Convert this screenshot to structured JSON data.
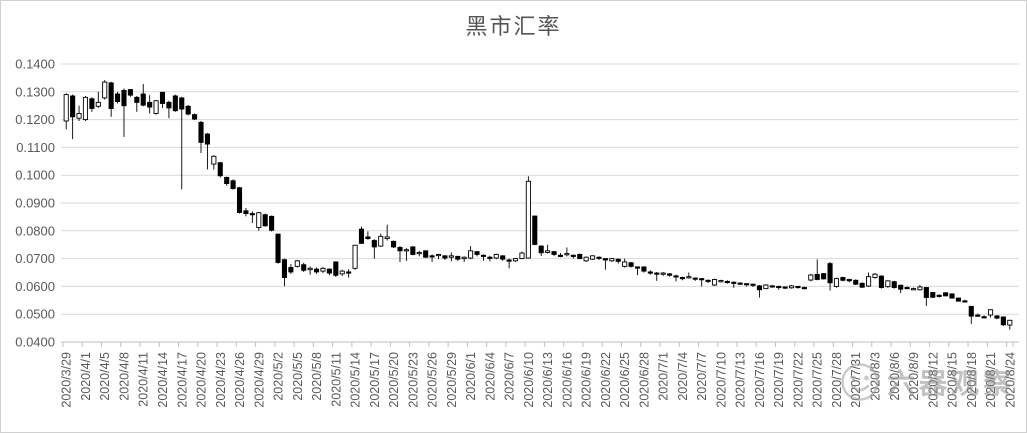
{
  "title": "黑市汇率",
  "watermark": {
    "text": "六器观察"
  },
  "chart_data": {
    "type": "candlestick",
    "title": "黑市汇率",
    "grid": true,
    "y_axis": {
      "min": 0.04,
      "max": 0.14,
      "step": 0.01,
      "format_decimals": 4
    },
    "y_tick_labels": [
      "0.1400",
      "0.1300",
      "0.1200",
      "0.1100",
      "0.1000",
      "0.0900",
      "0.0800",
      "0.0700",
      "0.0600",
      "0.0500",
      "0.0400"
    ],
    "x_label_every": 3,
    "x_tick_labels": [
      "2020/3/29",
      "2020/4/1",
      "2020/4/5",
      "2020/4/8",
      "2020/4/11",
      "2020/4/14",
      "2020/4/17",
      "2020/4/20",
      "2020/4/23",
      "2020/4/26",
      "2020/4/29",
      "2020/5/2",
      "2020/5/5",
      "2020/5/8",
      "2020/5/11",
      "2020/5/14",
      "2020/5/17",
      "2020/5/20",
      "2020/5/23",
      "2020/5/26",
      "2020/5/29",
      "2020/6/1",
      "2020/6/4",
      "2020/6/7",
      "2020/6/10",
      "2020/6/13",
      "2020/6/16",
      "2020/6/19",
      "2020/6/22",
      "2020/6/25",
      "2020/6/28",
      "2020/7/1",
      "2020/7/4",
      "2020/7/7",
      "2020/7/10",
      "2020/7/13",
      "2020/7/16",
      "2020/7/19",
      "2020/7/22",
      "2020/7/25",
      "2020/7/28",
      "2020/7/31",
      "2020/8/3",
      "2020/8/6",
      "2020/8/9",
      "2020/8/12",
      "2020/8/15",
      "2020/8/18",
      "2020/8/21",
      "2020/8/24"
    ],
    "colors": {
      "up_fill": "#ffffff",
      "down_fill": "#000000",
      "outline": "#000000",
      "gridline": "#d9d9d9",
      "axis_line": "#bfbfbf",
      "axis_text": "#595959",
      "title_text": "#555555"
    },
    "candles": [
      [
        "2020/3/29",
        0.1195,
        0.1295,
        0.1165,
        0.129
      ],
      [
        "2020/3/30",
        0.1285,
        0.129,
        0.113,
        0.121
      ],
      [
        "2020/3/31",
        0.1205,
        0.125,
        0.1195,
        0.1222
      ],
      [
        "2020/4/1",
        0.12,
        0.1285,
        0.1195,
        0.128
      ],
      [
        "2020/4/3",
        0.1275,
        0.128,
        0.1228,
        0.124
      ],
      [
        "2020/4/4",
        0.1248,
        0.13,
        0.1242,
        0.1262
      ],
      [
        "2020/4/5",
        0.1278,
        0.1342,
        0.1272,
        0.1335
      ],
      [
        "2020/4/6",
        0.1332,
        0.1336,
        0.121,
        0.124
      ],
      [
        "2020/4/7",
        0.1292,
        0.13,
        0.1258,
        0.1265
      ],
      [
        "2020/4/8",
        0.1305,
        0.1312,
        0.1138,
        0.125
      ],
      [
        "2020/4/9",
        0.1308,
        0.131,
        0.1282,
        0.1288
      ],
      [
        "2020/4/10",
        0.128,
        0.1285,
        0.1228,
        0.1262
      ],
      [
        "2020/4/11",
        0.1292,
        0.1328,
        0.1248,
        0.1252
      ],
      [
        "2020/4/12",
        0.1262,
        0.1288,
        0.1222,
        0.1245
      ],
      [
        "2020/4/13",
        0.1222,
        0.127,
        0.1218,
        0.1268
      ],
      [
        "2020/4/14",
        0.1298,
        0.13,
        0.1242,
        0.1258
      ],
      [
        "2020/4/15",
        0.1262,
        0.1268,
        0.1205,
        0.1242
      ],
      [
        "2020/4/16",
        0.1285,
        0.129,
        0.1228,
        0.1232
      ],
      [
        "2020/4/17",
        0.1278,
        0.1282,
        0.0949,
        0.1238
      ],
      [
        "2020/4/18",
        0.1248,
        0.1252,
        0.1215,
        0.122
      ],
      [
        "2020/4/19",
        0.1218,
        0.1222,
        0.1198,
        0.1202
      ],
      [
        "2020/4/20",
        0.119,
        0.1195,
        0.108,
        0.1118
      ],
      [
        "2020/4/21",
        0.1148,
        0.1152,
        0.1021,
        0.1112
      ],
      [
        "2020/4/22",
        0.104,
        0.1072,
        0.102,
        0.1068
      ],
      [
        "2020/4/23",
        0.1045,
        0.1048,
        0.0992,
        0.0998
      ],
      [
        "2020/4/24",
        0.0992,
        0.0995,
        0.0962,
        0.097
      ],
      [
        "2020/4/25",
        0.098,
        0.0985,
        0.0948,
        0.0952
      ],
      [
        "2020/4/26",
        0.0955,
        0.0958,
        0.0862,
        0.0866
      ],
      [
        "2020/4/27",
        0.0872,
        0.0882,
        0.0852,
        0.0862
      ],
      [
        "2020/4/28",
        0.0862,
        0.087,
        0.0828,
        0.086
      ],
      [
        "2020/4/29",
        0.0812,
        0.0868,
        0.08,
        0.0865
      ],
      [
        "2020/4/30",
        0.0858,
        0.0862,
        0.0815,
        0.0818
      ],
      [
        "2020/5/1",
        0.0852,
        0.0855,
        0.0798,
        0.0802
      ],
      [
        "2020/5/2",
        0.0788,
        0.079,
        0.0682,
        0.0686
      ],
      [
        "2020/5/3",
        0.0696,
        0.07,
        0.0601,
        0.0632
      ],
      [
        "2020/5/4",
        0.0668,
        0.068,
        0.0645,
        0.0652
      ],
      [
        "2020/5/5",
        0.0672,
        0.0695,
        0.0668,
        0.0692
      ],
      [
        "2020/5/6",
        0.0678,
        0.0685,
        0.0652,
        0.0658
      ],
      [
        "2020/5/7",
        0.066,
        0.0672,
        0.0642,
        0.0665
      ],
      [
        "2020/5/8",
        0.0662,
        0.0668,
        0.0645,
        0.0652
      ],
      [
        "2020/5/9",
        0.0655,
        0.067,
        0.0648,
        0.0665
      ],
      [
        "2020/5/10",
        0.0662,
        0.0665,
        0.064,
        0.0648
      ],
      [
        "2020/5/11",
        0.0688,
        0.069,
        0.0634,
        0.064
      ],
      [
        "2020/5/12",
        0.0645,
        0.066,
        0.0638,
        0.0655
      ],
      [
        "2020/5/13",
        0.0652,
        0.0662,
        0.0632,
        0.0648
      ],
      [
        "2020/5/14",
        0.0665,
        0.075,
        0.066,
        0.0748
      ],
      [
        "2020/5/15",
        0.0806,
        0.0815,
        0.0752,
        0.0755
      ],
      [
        "2020/5/16",
        0.0778,
        0.0798,
        0.0768,
        0.0772
      ],
      [
        "2020/5/17",
        0.0765,
        0.077,
        0.07,
        0.0742
      ],
      [
        "2020/5/18",
        0.0745,
        0.079,
        0.0742,
        0.078
      ],
      [
        "2020/5/19",
        0.0772,
        0.0822,
        0.0765,
        0.0778
      ],
      [
        "2020/5/20",
        0.0762,
        0.0765,
        0.0738,
        0.0742
      ],
      [
        "2020/5/21",
        0.074,
        0.0745,
        0.0688,
        0.0728
      ],
      [
        "2020/5/22",
        0.073,
        0.0738,
        0.0692,
        0.0732
      ],
      [
        "2020/5/23",
        0.0742,
        0.0745,
        0.0712,
        0.0715
      ],
      [
        "2020/5/24",
        0.0718,
        0.0728,
        0.0708,
        0.0722
      ],
      [
        "2020/5/25",
        0.0728,
        0.073,
        0.0702,
        0.0705
      ],
      [
        "2020/5/26",
        0.071,
        0.0715,
        0.0688,
        0.0708
      ],
      [
        "2020/5/27",
        0.0712,
        0.0718,
        0.0698,
        0.0715
      ],
      [
        "2020/5/28",
        0.071,
        0.0712,
        0.0695,
        0.0702
      ],
      [
        "2020/5/29",
        0.0705,
        0.0722,
        0.069,
        0.071
      ],
      [
        "2020/5/30",
        0.0708,
        0.071,
        0.0692,
        0.0698
      ],
      [
        "2020/5/31",
        0.07,
        0.0708,
        0.0688,
        0.0705
      ],
      [
        "2020/6/1",
        0.0702,
        0.0745,
        0.0698,
        0.0728
      ],
      [
        "2020/6/2",
        0.0725,
        0.0728,
        0.0708,
        0.0715
      ],
      [
        "2020/6/3",
        0.0712,
        0.0715,
        0.0692,
        0.0708
      ],
      [
        "2020/6/4",
        0.0705,
        0.071,
        0.069,
        0.0702
      ],
      [
        "2020/6/5",
        0.0702,
        0.0718,
        0.0698,
        0.0715
      ],
      [
        "2020/6/6",
        0.071,
        0.0712,
        0.0692,
        0.0698
      ],
      [
        "2020/6/7",
        0.0695,
        0.07,
        0.0665,
        0.0692
      ],
      [
        "2020/6/8",
        0.0692,
        0.0702,
        0.0688,
        0.07
      ],
      [
        "2020/6/9",
        0.07,
        0.0725,
        0.0698,
        0.072
      ],
      [
        "2020/6/10",
        0.0702,
        0.0996,
        0.07,
        0.0978
      ],
      [
        "2020/6/11",
        0.0853,
        0.0855,
        0.0748,
        0.0751
      ],
      [
        "2020/6/12",
        0.0745,
        0.0748,
        0.0709,
        0.0721
      ],
      [
        "2020/6/13",
        0.0722,
        0.075,
        0.0718,
        0.0728
      ],
      [
        "2020/6/14",
        0.0725,
        0.0728,
        0.071,
        0.0715
      ],
      [
        "2020/6/15",
        0.0712,
        0.072,
        0.0705,
        0.071
      ],
      [
        "2020/6/16",
        0.0715,
        0.074,
        0.0708,
        0.0718
      ],
      [
        "2020/6/17",
        0.0712,
        0.0715,
        0.07,
        0.0708
      ],
      [
        "2020/6/18",
        0.0715,
        0.0718,
        0.0698,
        0.07
      ],
      [
        "2020/6/19",
        0.0692,
        0.0708,
        0.0688,
        0.0705
      ],
      [
        "2020/6/20",
        0.0698,
        0.0712,
        0.0695,
        0.071
      ],
      [
        "2020/6/21",
        0.0705,
        0.0708,
        0.0695,
        0.0702
      ],
      [
        "2020/6/22",
        0.07,
        0.0702,
        0.066,
        0.0695
      ],
      [
        "2020/6/23",
        0.0692,
        0.0702,
        0.0688,
        0.07
      ],
      [
        "2020/6/24",
        0.0698,
        0.07,
        0.0682,
        0.069
      ],
      [
        "2020/6/25",
        0.0672,
        0.07,
        0.0668,
        0.0688
      ],
      [
        "2020/6/26",
        0.0685,
        0.0688,
        0.0668,
        0.0672
      ],
      [
        "2020/6/27",
        0.067,
        0.0672,
        0.064,
        0.0668
      ],
      [
        "2020/6/28",
        0.067,
        0.0672,
        0.065,
        0.0655
      ],
      [
        "2020/6/29",
        0.0652,
        0.0658,
        0.0642,
        0.065
      ],
      [
        "2020/6/30",
        0.0648,
        0.0652,
        0.062,
        0.0645
      ],
      [
        "2020/7/1",
        0.0645,
        0.0652,
        0.0638,
        0.0648
      ],
      [
        "2020/7/2",
        0.0645,
        0.0648,
        0.0635,
        0.064
      ],
      [
        "2020/7/3",
        0.0638,
        0.0642,
        0.0618,
        0.0635
      ],
      [
        "2020/7/4",
        0.0632,
        0.0635,
        0.0622,
        0.063
      ],
      [
        "2020/7/5",
        0.0632,
        0.065,
        0.0628,
        0.0635
      ],
      [
        "2020/7/6",
        0.063,
        0.0632,
        0.062,
        0.0628
      ],
      [
        "2020/7/7",
        0.0628,
        0.063,
        0.06,
        0.0625
      ],
      [
        "2020/7/8",
        0.0622,
        0.0625,
        0.0612,
        0.062
      ],
      [
        "2020/7/9",
        0.0605,
        0.0628,
        0.0602,
        0.0625
      ],
      [
        "2020/7/10",
        0.062,
        0.0624,
        0.0614,
        0.0621
      ],
      [
        "2020/7/11",
        0.0618,
        0.0622,
        0.061,
        0.0615
      ],
      [
        "2020/7/12",
        0.0615,
        0.0618,
        0.0595,
        0.0612
      ],
      [
        "2020/7/13",
        0.0612,
        0.0615,
        0.0605,
        0.061
      ],
      [
        "2020/7/14",
        0.061,
        0.0612,
        0.06,
        0.0608
      ],
      [
        "2020/7/15",
        0.0608,
        0.061,
        0.0598,
        0.0605
      ],
      [
        "2020/7/16",
        0.0602,
        0.0605,
        0.056,
        0.0588
      ],
      [
        "2020/7/17",
        0.0592,
        0.0608,
        0.059,
        0.0605
      ],
      [
        "2020/7/18",
        0.0602,
        0.0605,
        0.0595,
        0.06
      ],
      [
        "2020/7/19",
        0.06,
        0.0602,
        0.0588,
        0.0598
      ],
      [
        "2020/7/20",
        0.0598,
        0.06,
        0.059,
        0.0595
      ],
      [
        "2020/7/21",
        0.0595,
        0.0605,
        0.0592,
        0.0602
      ],
      [
        "2020/7/22",
        0.06,
        0.0602,
        0.0592,
        0.0598
      ],
      [
        "2020/7/23",
        0.0596,
        0.0599,
        0.059,
        0.0595
      ],
      [
        "2020/7/24",
        0.0623,
        0.0645,
        0.0618,
        0.0641
      ],
      [
        "2020/7/25",
        0.0643,
        0.0697,
        0.0622,
        0.0625
      ],
      [
        "2020/7/26",
        0.0646,
        0.0648,
        0.0625,
        0.0627
      ],
      [
        "2020/7/27",
        0.0682,
        0.0688,
        0.0585,
        0.0613
      ],
      [
        "2020/7/28",
        0.06,
        0.0632,
        0.0595,
        0.0628
      ],
      [
        "2020/7/29",
        0.0632,
        0.0635,
        0.0618,
        0.0622
      ],
      [
        "2020/7/30",
        0.0625,
        0.0628,
        0.0615,
        0.062
      ],
      [
        "2020/7/31",
        0.0622,
        0.0625,
        0.0605,
        0.0608
      ],
      [
        "2020/8/1",
        0.0611,
        0.0615,
        0.0595,
        0.0597
      ],
      [
        "2020/8/2",
        0.0601,
        0.065,
        0.0598,
        0.0635
      ],
      [
        "2020/8/3",
        0.0632,
        0.0648,
        0.0628,
        0.0644
      ],
      [
        "2020/8/4",
        0.0637,
        0.064,
        0.0592,
        0.0596
      ],
      [
        "2020/8/5",
        0.0599,
        0.0622,
        0.0595,
        0.062
      ],
      [
        "2020/8/6",
        0.0617,
        0.062,
        0.0592,
        0.0596
      ],
      [
        "2020/8/7",
        0.0604,
        0.0606,
        0.0576,
        0.059
      ],
      [
        "2020/8/8",
        0.0596,
        0.06,
        0.059,
        0.0594
      ],
      [
        "2020/8/9",
        0.0592,
        0.0596,
        0.0588,
        0.0592
      ],
      [
        "2020/8/10",
        0.0588,
        0.0605,
        0.0585,
        0.0598
      ],
      [
        "2020/8/11",
        0.0596,
        0.0598,
        0.053,
        0.056
      ],
      [
        "2020/8/12",
        0.0578,
        0.058,
        0.0558,
        0.0561
      ],
      [
        "2020/8/13",
        0.0568,
        0.0572,
        0.056,
        0.0565
      ],
      [
        "2020/8/14",
        0.0577,
        0.0579,
        0.0564,
        0.0566
      ],
      [
        "2020/8/15",
        0.0573,
        0.0575,
        0.0556,
        0.0558
      ],
      [
        "2020/8/16",
        0.0558,
        0.056,
        0.0545,
        0.0547
      ],
      [
        "2020/8/17",
        0.0548,
        0.0552,
        0.0542,
        0.0546
      ],
      [
        "2020/8/18",
        0.0528,
        0.053,
        0.0465,
        0.0493
      ],
      [
        "2020/8/19",
        0.0497,
        0.0502,
        0.049,
        0.0495
      ],
      [
        "2020/8/20",
        0.0491,
        0.0496,
        0.0486,
        0.049
      ],
      [
        "2020/8/21",
        0.0497,
        0.0518,
        0.0488,
        0.0516
      ],
      [
        "2020/8/22",
        0.0494,
        0.0496,
        0.0482,
        0.0486
      ],
      [
        "2020/8/23",
        0.049,
        0.0492,
        0.0458,
        0.0462
      ],
      [
        "2020/8/24",
        0.0461,
        0.048,
        0.0444,
        0.0478
      ]
    ]
  }
}
